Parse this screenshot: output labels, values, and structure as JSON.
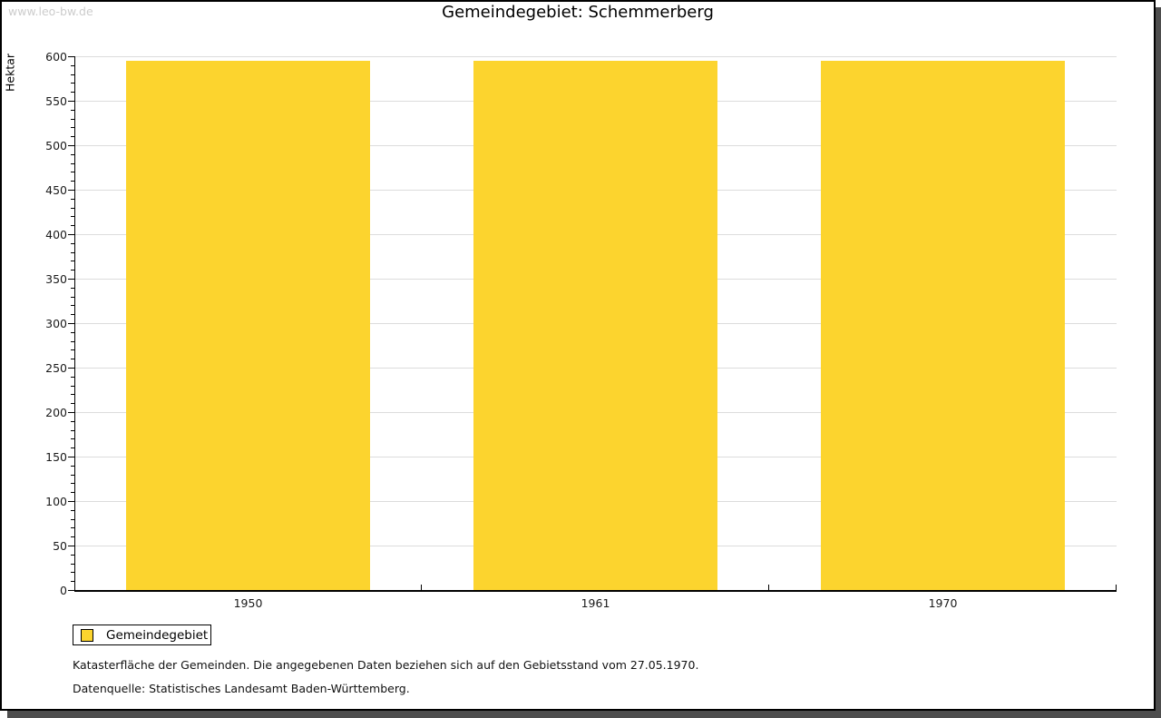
{
  "watermark": "www.leo-bw.de",
  "title": "Gemeindegebiet: Schemmerberg",
  "colors": {
    "bar": "#fcd42e",
    "grid": "#dcdcdc",
    "axis": "#000000",
    "watermark": "#cccccc",
    "frame_shadow": "#4d4d4d"
  },
  "chart_data": {
    "type": "bar",
    "title": "Gemeindegebiet: Schemmerberg",
    "categories": [
      "1950",
      "1961",
      "1970"
    ],
    "series": [
      {
        "name": "Gemeindegebiet",
        "values": [
          595,
          595,
          595
        ],
        "color": "#fcd42e"
      }
    ],
    "xlabel": "",
    "ylabel": "Hektar",
    "ylim": [
      0,
      600
    ],
    "ytick_major": 50,
    "ytick_minor": 10,
    "grid": true,
    "legend_position": "bottom-left",
    "legend": [
      "Gemeindegebiet"
    ]
  },
  "legend": {
    "items": [
      {
        "label": "Gemeindegebiet",
        "color": "#fcd42e"
      }
    ]
  },
  "footnotes": [
    "Katasterfläche der Gemeinden. Die angegebenen Daten beziehen sich auf den Gebietsstand vom 27.05.1970.",
    "Datenquelle: Statistisches Landesamt Baden-Württemberg."
  ]
}
